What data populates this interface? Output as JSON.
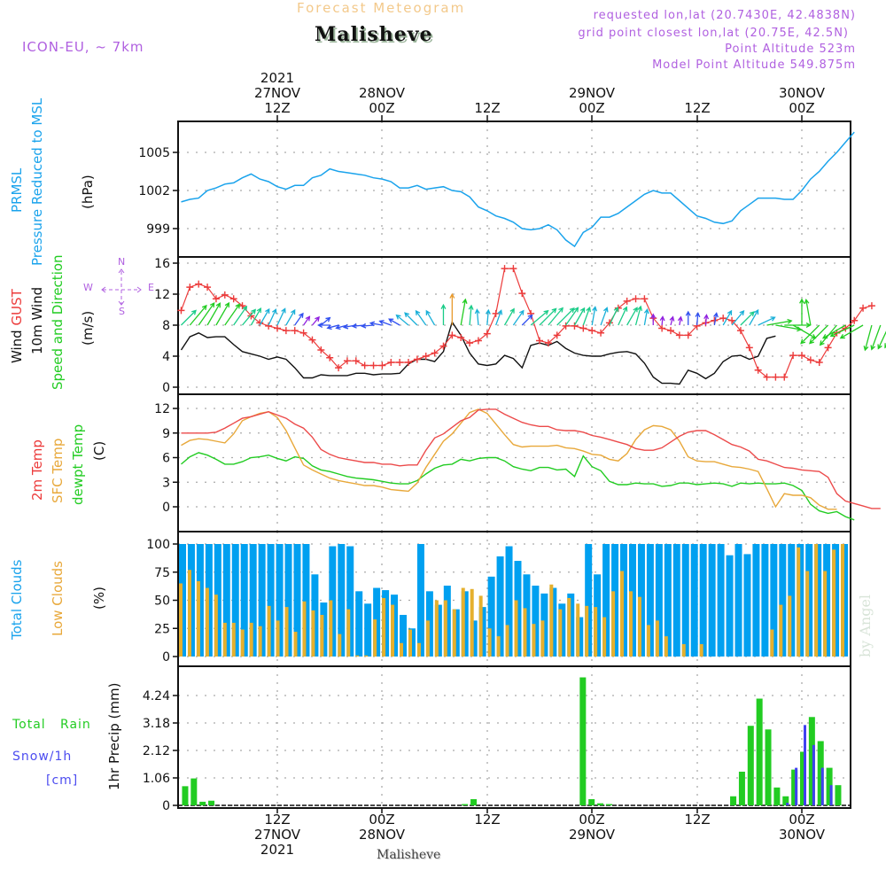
{
  "header": {
    "product": "Forecast Meteogram",
    "location": "Malisheve",
    "model": "ICON-EU, ~ 7km",
    "requested": "requested lon,lat (20.7430E, 42.4838N)",
    "grid_point": "grid point closest lon,lat (20.75E, 42.5N)",
    "point_altitude": "Point Altitude 523m",
    "model_altitude": "Model Point Altitude 549.875m",
    "footer_location": "Malisheve",
    "watermark": "by Angel"
  },
  "time_axis": {
    "top_labels": [
      {
        "lines": [
          "2021",
          "27NOV",
          "12Z"
        ]
      },
      {
        "lines": [
          "28NOV",
          "00Z"
        ]
      },
      {
        "lines": [
          "12Z"
        ]
      },
      {
        "lines": [
          "29NOV",
          "00Z"
        ]
      },
      {
        "lines": [
          "12Z"
        ]
      },
      {
        "lines": [
          "30NOV",
          "00Z"
        ]
      }
    ],
    "bottom_labels": [
      {
        "lines": [
          "12Z",
          "27NOV",
          "2021"
        ]
      },
      {
        "lines": [
          "00Z",
          "28NOV"
        ]
      },
      {
        "lines": [
          "12Z"
        ]
      },
      {
        "lines": [
          "00Z",
          "29NOV"
        ]
      },
      {
        "lines": [
          "12Z"
        ]
      },
      {
        "lines": [
          "00Z",
          "30NOV"
        ]
      }
    ],
    "start": "2021-11-27T01Z",
    "step_hours": 1
  },
  "compass": {
    "n": "N",
    "s": "S",
    "e": "E",
    "w": "W"
  },
  "panel_labels": {
    "pressure": {
      "l1": "PRMSL",
      "l2": "Pressure Reduced to MSL",
      "unit": "(hPa)"
    },
    "wind": {
      "l1a": "Wind ",
      "l1b": "GUST",
      "l2": "10m Wind",
      "l3": "Speed and Direction",
      "unit": "(m/s)"
    },
    "temp": {
      "l1": "2m Temp",
      "l2": "SFC Temp",
      "l3": "dewpt Temp",
      "unit": "(C)"
    },
    "clouds": {
      "l1": "Total Clouds",
      "l2": "Low Clouds",
      "unit": "(%)"
    },
    "precip": {
      "l1": "Total   Rain",
      "l2": "Snow/1h",
      "l3": "[cm]",
      "unit": "1hr Precip (mm)"
    }
  },
  "colors": {
    "pressure": "#1aa3ec",
    "gust": "#ec3b3b",
    "wind": "#111111",
    "t2m": "#ec4a4a",
    "tsfc": "#e8a83a",
    "dewpt": "#22cc22",
    "total_clouds": "#00a0f0",
    "low_clouds": "#e5b02e",
    "rain": "#22cc22",
    "snow": "#4040f0",
    "grid": "#aaaaaa"
  },
  "chart_data": [
    {
      "type": "line",
      "title": "PRMSL Pressure Reduced to MSL",
      "ylabel": "(hPa)",
      "yticks": [
        999,
        1002,
        1005
      ],
      "ylim": [
        996.7,
        1007.4
      ],
      "series": [
        {
          "name": "PRMSL",
          "values": [
            1001.1,
            1001.3,
            1001.4,
            1002.0,
            1002.2,
            1002.5,
            1002.6,
            1003.0,
            1003.3,
            1002.9,
            1002.7,
            1002.3,
            1002.1,
            1002.4,
            1002.4,
            1003.0,
            1003.2,
            1003.7,
            1003.5,
            1003.4,
            1003.3,
            1003.2,
            1003.0,
            1002.9,
            1002.7,
            1002.2,
            1002.2,
            1002.4,
            1002.1,
            1002.2,
            1002.3,
            1002.0,
            1001.9,
            1001.5,
            1000.7,
            1000.4,
            1000.0,
            999.8,
            999.5,
            999.0,
            998.9,
            999.0,
            999.3,
            998.9,
            998.1,
            997.6,
            998.7,
            999.1,
            999.9,
            999.9,
            1000.2,
            1000.7,
            1001.2,
            1001.7,
            1002.0,
            1001.8,
            1001.8,
            1001.2,
            1000.6,
            1000.0,
            999.8,
            999.5,
            999.4,
            999.6,
            1000.4,
            1000.9,
            1001.4,
            1001.4,
            1001.4,
            1001.3,
            1001.3,
            1002.0,
            1002.9,
            1003.5,
            1004.3,
            1005.0,
            1005.8,
            1006.6
          ]
        }
      ]
    },
    {
      "type": "line",
      "title": "Wind GUST / 10m Wind Speed and Direction",
      "ylabel": "(m/s)",
      "yticks": [
        0,
        4,
        8,
        12,
        16
      ],
      "ylim": [
        0,
        16.5
      ],
      "series": [
        {
          "name": "Wind GUST",
          "values": [
            9.9,
            12.9,
            13.3,
            12.9,
            11.4,
            11.9,
            11.4,
            10.5,
            9.2,
            8.3,
            7.9,
            7.6,
            7.3,
            7.3,
            7.0,
            6.1,
            4.8,
            3.8,
            2.5,
            3.4,
            3.4,
            2.8,
            2.8,
            2.8,
            3.2,
            3.2,
            3.2,
            3.6,
            4.0,
            4.4,
            5.3,
            6.7,
            6.4,
            5.7,
            6.0,
            6.9,
            9.5,
            15.3,
            15.3,
            12.1,
            9.5,
            6.0,
            5.7,
            6.7,
            7.9,
            7.9,
            7.6,
            7.3,
            7.0,
            8.3,
            10.2,
            11.1,
            11.4,
            11.4,
            8.9,
            7.6,
            7.3,
            6.7,
            6.7,
            7.9,
            8.3,
            8.6,
            8.9,
            8.6,
            7.3,
            5.1,
            2.2,
            1.3,
            1.3,
            1.3,
            4.1,
            4.1,
            3.5,
            3.2,
            5.1,
            7.0,
            7.6,
            8.6,
            10.2,
            10.5
          ]
        },
        {
          "name": "10m Wind",
          "values": [
            4.8,
            6.5,
            7.0,
            6.4,
            6.5,
            6.5,
            5.5,
            4.6,
            4.3,
            4.0,
            3.6,
            3.9,
            3.6,
            2.5,
            1.2,
            1.2,
            1.6,
            1.5,
            1.5,
            1.5,
            1.8,
            1.8,
            1.6,
            1.7,
            1.7,
            1.8,
            3.0,
            3.6,
            3.6,
            3.3,
            4.6,
            8.4,
            6.7,
            4.4,
            3.0,
            2.8,
            3.0,
            4.1,
            3.7,
            2.5,
            5.4,
            5.7,
            5.4,
            5.9,
            5.0,
            4.4,
            4.1,
            4.0,
            4.0,
            4.3,
            4.5,
            4.6,
            4.3,
            3.1,
            1.3,
            0.5,
            0.5,
            0.4,
            2.2,
            1.8,
            1.1,
            1.8,
            3.3,
            4.0,
            4.1,
            3.6,
            4.0,
            6.3,
            6.6
          ]
        }
      ],
      "wind_arrows_dir_from_deg": [
        225,
        220,
        215,
        210,
        210,
        215,
        215,
        220,
        210,
        210,
        205,
        205,
        210,
        215,
        215,
        220,
        230,
        90,
        75,
        75,
        80,
        85,
        85,
        100,
        110,
        120,
        130,
        135,
        145,
        150,
        180,
        180,
        190,
        185,
        175,
        185,
        200,
        210,
        215,
        225,
        230,
        225,
        220,
        225,
        215,
        210,
        200,
        190,
        200,
        205,
        205,
        210,
        195,
        190,
        180,
        185,
        195,
        190,
        180,
        185,
        185,
        190,
        210,
        220,
        225,
        210,
        245,
        260,
        280,
        270,
        300,
        180,
        170,
        45,
        45,
        40,
        60,
        65,
        60,
        15,
        20,
        25,
        30,
        210
      ]
    },
    {
      "type": "line",
      "title": "2m Temp / SFC Temp / dewpt Temp",
      "ylabel": "(C)",
      "yticks": [
        0,
        3,
        6,
        9,
        12
      ],
      "ylim": [
        -2.5,
        13.2
      ],
      "series": [
        {
          "name": "2m Temp",
          "values": [
            9.0,
            9.0,
            9.0,
            9.0,
            9.1,
            9.6,
            10.2,
            10.8,
            11.0,
            11.3,
            11.6,
            11.2,
            10.8,
            10.1,
            9.6,
            8.5,
            7.0,
            6.4,
            6.0,
            5.8,
            5.6,
            5.4,
            5.4,
            5.2,
            5.2,
            5.0,
            5.1,
            5.1,
            6.9,
            8.4,
            8.9,
            9.7,
            10.5,
            10.9,
            11.8,
            11.9,
            11.9,
            11.3,
            10.8,
            10.3,
            10.0,
            9.8,
            9.8,
            9.4,
            9.3,
            9.3,
            9.1,
            8.7,
            8.5,
            8.2,
            7.9,
            7.6,
            7.1,
            6.9,
            6.9,
            7.2,
            7.9,
            8.6,
            9.1,
            9.3,
            9.3,
            8.8,
            8.2,
            7.6,
            7.3,
            6.8,
            5.8,
            5.6,
            5.2,
            4.8,
            4.7,
            4.5,
            4.4,
            4.3,
            3.6,
            1.6,
            0.7,
            0.4,
            0.1,
            -0.2,
            -0.2
          ]
        },
        {
          "name": "SFC Temp",
          "values": [
            7.5,
            8.1,
            8.3,
            8.2,
            8.0,
            7.8,
            8.9,
            10.5,
            11.0,
            11.4,
            11.6,
            10.9,
            9.3,
            7.2,
            5.1,
            4.5,
            4.0,
            3.5,
            3.2,
            3.0,
            2.8,
            2.6,
            2.6,
            2.4,
            2.1,
            2.0,
            1.9,
            2.9,
            4.8,
            6.4,
            8.0,
            8.9,
            10.2,
            11.5,
            11.9,
            11.4,
            10.1,
            8.8,
            7.6,
            7.3,
            7.4,
            7.4,
            7.4,
            7.5,
            7.2,
            7.1,
            6.8,
            6.4,
            6.3,
            5.8,
            5.6,
            6.5,
            8.2,
            9.4,
            9.9,
            9.8,
            9.4,
            8.0,
            6.1,
            5.6,
            5.5,
            5.5,
            5.2,
            4.9,
            4.8,
            4.6,
            4.3,
            2.2,
            0.0,
            1.6,
            1.4,
            1.4,
            1.1,
            0.2,
            -0.3,
            -0.3
          ]
        },
        {
          "name": "dewpt Temp",
          "values": [
            5.2,
            6.1,
            6.6,
            6.3,
            5.8,
            5.2,
            5.2,
            5.5,
            6.0,
            6.1,
            6.3,
            5.9,
            5.6,
            6.1,
            5.9,
            5.0,
            4.5,
            4.3,
            4.0,
            3.7,
            3.5,
            3.4,
            3.3,
            3.1,
            2.9,
            2.8,
            2.8,
            3.2,
            4.0,
            4.7,
            5.1,
            5.2,
            5.8,
            5.6,
            5.9,
            6.0,
            6.0,
            5.6,
            4.9,
            4.6,
            4.4,
            4.8,
            4.8,
            4.5,
            4.6,
            3.7,
            6.2,
            4.9,
            4.4,
            3.1,
            2.7,
            2.7,
            2.9,
            2.8,
            2.8,
            2.5,
            2.6,
            2.9,
            2.9,
            2.7,
            2.8,
            2.9,
            2.8,
            2.5,
            2.9,
            2.8,
            2.9,
            2.8,
            2.8,
            2.9,
            2.6,
            2.0,
            0.3,
            -0.5,
            -0.8,
            -0.6,
            -1.2,
            -1.6
          ]
        }
      ]
    },
    {
      "type": "bar",
      "title": "Total Clouds / Low Clouds",
      "ylabel": "(%)",
      "yticks": [
        0,
        25,
        50,
        75,
        100
      ],
      "ylim": [
        0,
        100
      ],
      "series": [
        {
          "name": "Total Clouds",
          "values": [
            100,
            100,
            100,
            100,
            100,
            100,
            100,
            100,
            100,
            100,
            100,
            100,
            100,
            100,
            100,
            73,
            48,
            98,
            100,
            98,
            58,
            47,
            61,
            59,
            55,
            37,
            25,
            100,
            58,
            46,
            63,
            42,
            58,
            32,
            44,
            71,
            89,
            98,
            85,
            73,
            63,
            56,
            61,
            47,
            56,
            35,
            100,
            73,
            100,
            100,
            100,
            100,
            100,
            100,
            100,
            100,
            100,
            100,
            100,
            100,
            100,
            100,
            90,
            100,
            91,
            100,
            100,
            100,
            100,
            100,
            100,
            100,
            100,
            100,
            100,
            100,
            100,
            100,
            100,
            100,
            100,
            100,
            100,
            100,
            100,
            100,
            100,
            100,
            100,
            100
          ]
        },
        {
          "name": "Low Clouds",
          "values": [
            65,
            77,
            67,
            61,
            55,
            30,
            30,
            24,
            30,
            27,
            45,
            32,
            44,
            22,
            49,
            41,
            37,
            50,
            20,
            42,
            1,
            1,
            33,
            52,
            46,
            12,
            24,
            12,
            32,
            50,
            50,
            42,
            61,
            60,
            54,
            25,
            18,
            28,
            50,
            43,
            29,
            32,
            64,
            42,
            52,
            47,
            45,
            44,
            35,
            58,
            76,
            58,
            53,
            28,
            32,
            18,
            0,
            11,
            0,
            11,
            0,
            0,
            0,
            0,
            0,
            0,
            0,
            24,
            46,
            54,
            97,
            76,
            100,
            76,
            95,
            100,
            100,
            100,
            100,
            100,
            100,
            100,
            96
          ]
        }
      ]
    },
    {
      "type": "bar",
      "title": "1hr Precip",
      "ylabel": "1hr Precip (mm)",
      "yticks": [
        0,
        1.06,
        2.12,
        3.18,
        4.24
      ],
      "ylim": [
        0,
        5.0
      ],
      "series": [
        {
          "name": "Total Rain",
          "bar_start_index": 1,
          "values": [
            0.74,
            1.04,
            0.14,
            0.18,
            0,
            0,
            0,
            0,
            0,
            0,
            0,
            0,
            0,
            0,
            0,
            0,
            0,
            0,
            0,
            0,
            0,
            0,
            0,
            0,
            0,
            0,
            0,
            0,
            0,
            0,
            0,
            0,
            0.05,
            0.24,
            0,
            0,
            0,
            0,
            0,
            0,
            0,
            0,
            0,
            0,
            0,
            0,
            0,
            0,
            0,
            0,
            0,
            0,
            0,
            0,
            0,
            0,
            0,
            0,
            0,
            0,
            0,
            0,
            0,
            0,
            0,
            0,
            0,
            0,
            0,
            0,
            0,
            0,
            0,
            0,
            0,
            0,
            0,
            0,
            0,
            0,
            0,
            0,
            0,
            0,
            0,
            0,
            0,
            0,
            0,
            0,
            0,
            0,
            0,
            0,
            0,
            0,
            0,
            0,
            0,
            0,
            0,
            0,
            0,
            0,
            0
          ]
        },
        {
          "name": "Total Rain (late)",
          "note": "hourly from 28NOV 23Z",
          "values": [
            4.94,
            0.24,
            0.08,
            0.05
          ]
        },
        {
          "name": "Total Rain (30NOV)",
          "note": "hourly from 29NOV 16Z",
          "values": [
            0.35,
            1.3,
            3.07,
            4.12,
            2.93,
            0.69,
            0.35,
            1.38,
            2.07,
            3.41,
            2.48,
            1.45,
            0.78
          ]
        },
        {
          "name": "Snow/1h",
          "note": "hourly from 30NOV 22Z",
          "values": [
            0.1,
            1.45,
            3.1,
            2.33,
            1.45,
            0.78
          ]
        }
      ]
    }
  ]
}
